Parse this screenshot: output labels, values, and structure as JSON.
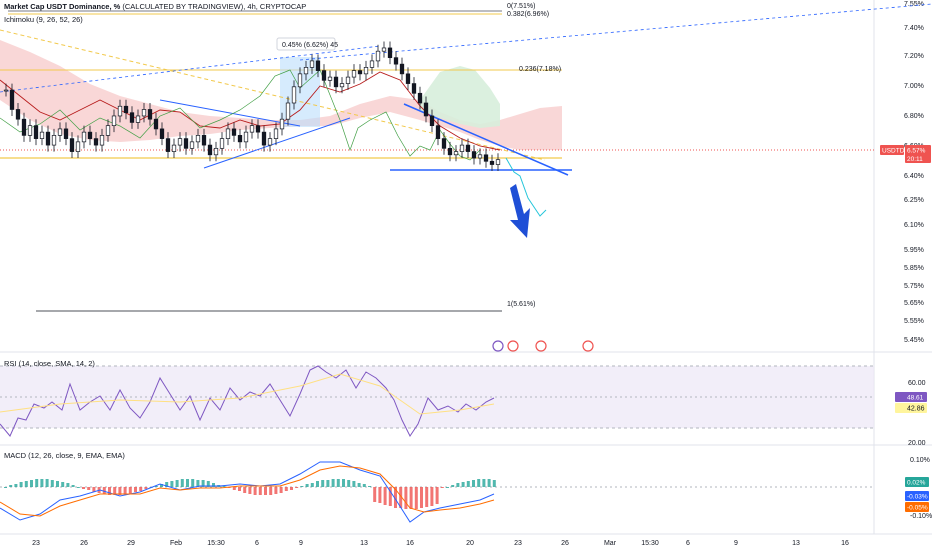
{
  "legends": {
    "main_title": "Market Cap USDT Dominance, %",
    "main_source": "(CALCULATED BY TRADINGVIEW), 4h, CRYPTOCAP",
    "ichimoku": "Ichimoku (9, 26, 52, 26)",
    "rsi": "RSI (14, close, SMA, 14, 2)",
    "macd": "MACD (12, 26, close, 9, EMA, EMA)"
  },
  "price_axis": {
    "ticks": [
      "7.55%",
      "7.40%",
      "7.20%",
      "7.00%",
      "6.80%",
      "6.60%",
      "6.40%",
      "6.25%",
      "6.10%",
      "5.95%",
      "5.85%",
      "5.75%",
      "5.65%",
      "5.55%",
      "5.45%"
    ],
    "symbol_tag": "USDTD",
    "price_tag": "6.57%",
    "countdown_tag": "20:11"
  },
  "rsi_axis": {
    "ticks": [
      "60.00",
      "20.00"
    ],
    "tag_rsi": "48.61",
    "tag_sma": "42.86"
  },
  "macd_axis": {
    "ticks": [
      "0.10%",
      "-0.10%"
    ],
    "tag_hist": "0.02%",
    "tag_macd": "-0.03%",
    "tag_signal": "-0.05%"
  },
  "time_axis": [
    "23",
    "26",
    "29",
    "Feb",
    "15:30",
    "6",
    "9",
    "13",
    "16",
    "20",
    "23",
    "26",
    "Mar",
    "15:30",
    "6",
    "9",
    "13",
    "16"
  ],
  "annotations": {
    "fib_0": "0(7.51%)",
    "fib_0382": "0.382(6.96%)",
    "fib_0236": "0.236(7.18%)",
    "fib_1": "1(5.61%)",
    "measure": "0.45% (6.62%) 45"
  },
  "colors": {
    "up": "#26a69a",
    "down": "#ef5350",
    "candle": "#131722",
    "fib": "#f2c94c",
    "trend": "#2962ff",
    "macd": "#2962ff",
    "signal": "#ff6d00",
    "rsi": "#7e57c2",
    "rsi_band": "#ede7f6",
    "cloud_bear": "#f7c9c9",
    "cloud_bull": "#d7eedb",
    "arrow": "#1f4fd6"
  },
  "chart_data": {
    "type": "candlestick",
    "interval": "4h",
    "symbol": "USDTD",
    "y_range_pct": [
      5.45,
      7.55
    ],
    "close_series_pct": [
      7.0,
      6.88,
      6.82,
      6.72,
      6.78,
      6.7,
      6.74,
      6.66,
      6.72,
      6.76,
      6.7,
      6.62,
      6.68,
      6.74,
      6.7,
      6.66,
      6.72,
      6.78,
      6.84,
      6.9,
      6.86,
      6.8,
      6.84,
      6.88,
      6.82,
      6.76,
      6.7,
      6.62,
      6.66,
      6.7,
      6.64,
      6.68,
      6.72,
      6.66,
      6.6,
      6.64,
      6.7,
      6.76,
      6.72,
      6.68,
      6.74,
      6.78,
      6.74,
      6.66,
      6.7,
      6.76,
      6.82,
      6.92,
      7.02,
      7.1,
      7.14,
      7.18,
      7.12,
      7.06,
      7.08,
      7.02,
      7.04,
      7.08,
      7.12,
      7.1,
      7.14,
      7.18,
      7.24,
      7.26,
      7.2,
      7.16,
      7.1,
      7.04,
      6.98,
      6.92,
      6.84,
      6.78,
      6.7,
      6.64,
      6.6,
      6.62,
      6.66,
      6.62,
      6.58,
      6.6,
      6.56,
      6.54,
      6.57
    ],
    "last_price_pct": 6.57,
    "rsi": {
      "last": 48.61,
      "sma": 42.86,
      "levels": [
        70,
        30
      ]
    },
    "macd": {
      "macd": -0.03,
      "signal": -0.05,
      "hist": 0.02
    }
  }
}
